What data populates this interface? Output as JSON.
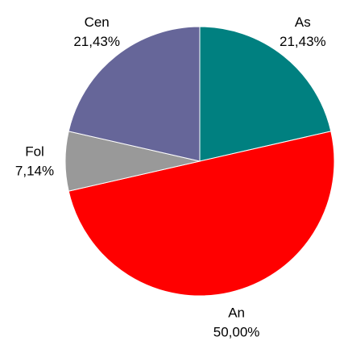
{
  "chart_data": {
    "type": "pie",
    "categories": [
      "As",
      "An",
      "Fol",
      "Cen"
    ],
    "values": [
      21.43,
      50.0,
      7.14,
      21.43
    ],
    "value_labels": [
      "21,43%",
      "50,00%",
      "7,14%",
      "21,43%"
    ],
    "colors": [
      "#008080",
      "#ff0000",
      "#999999",
      "#666699"
    ]
  }
}
